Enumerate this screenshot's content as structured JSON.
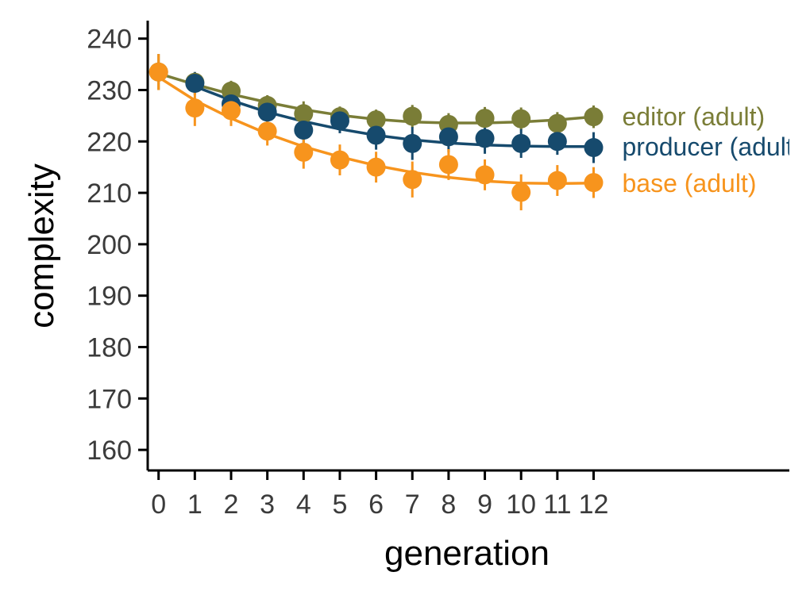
{
  "chart_data": {
    "type": "scatter",
    "title": "",
    "xlabel": "generation",
    "ylabel": "complexity",
    "x": [
      0,
      1,
      2,
      3,
      4,
      5,
      6,
      7,
      8,
      9,
      10,
      11,
      12
    ],
    "x_tick_labels": [
      "0",
      "1",
      "2",
      "3",
      "4",
      "5",
      "6",
      "7",
      "8",
      "9",
      "10",
      "11",
      "12"
    ],
    "xlim": [
      -0.3,
      17.4
    ],
    "y_ticks": [
      160,
      170,
      180,
      190,
      200,
      210,
      220,
      230,
      240
    ],
    "y_tick_labels": [
      "160",
      "170",
      "180",
      "190",
      "200",
      "210",
      "220",
      "230",
      "240"
    ],
    "ylim": [
      156,
      243.5
    ],
    "grid": false,
    "legend_placement": "right, at line ends",
    "series": [
      {
        "name": "editor (adult)",
        "color": "#7a7d37",
        "x": [
          0,
          1,
          2,
          3,
          4,
          5,
          6,
          7,
          8,
          9,
          10,
          11,
          12
        ],
        "values": [
          233.5,
          231.5,
          229.8,
          227.0,
          225.4,
          224.8,
          224.2,
          224.9,
          223.3,
          224.5,
          224.4,
          223.5,
          224.8
        ],
        "err": [
          3.5,
          2.0,
          2.0,
          2.0,
          2.4,
          2.0,
          2.0,
          2.2,
          2.2,
          2.2,
          2.2,
          2.2,
          2.2
        ],
        "fit": [
          233.2,
          231.1,
          229.2,
          227.6,
          226.2,
          225.1,
          224.3,
          223.8,
          223.6,
          223.6,
          223.8,
          224.2,
          224.8
        ]
      },
      {
        "name": "producer (adult)",
        "color": "#164a6d",
        "x": [
          1,
          2,
          3,
          4,
          5,
          6,
          7,
          8,
          9,
          10,
          11,
          12
        ],
        "values": [
          231.3,
          227.3,
          225.7,
          222.2,
          224.0,
          221.2,
          219.6,
          220.9,
          220.6,
          219.6,
          220.0,
          218.8
        ],
        "err": [
          2.2,
          2.2,
          2.2,
          3.0,
          2.4,
          2.8,
          3.2,
          3.0,
          3.0,
          2.8,
          2.6,
          3.0
        ],
        "fit": [
          230.7,
          228.0,
          225.7,
          223.9,
          222.4,
          221.2,
          220.3,
          219.7,
          219.3,
          219.1,
          219.0,
          219.0
        ]
      },
      {
        "name": "base (adult)",
        "color": "#f7941d",
        "x": [
          0,
          1,
          2,
          3,
          4,
          5,
          6,
          7,
          8,
          9,
          10,
          11,
          12
        ],
        "values": [
          233.5,
          226.5,
          226.0,
          222.0,
          217.9,
          216.4,
          215.0,
          212.6,
          215.5,
          213.5,
          210.1,
          212.4,
          212.0
        ],
        "err": [
          3.5,
          3.5,
          3.0,
          2.8,
          3.2,
          3.0,
          3.0,
          3.5,
          3.0,
          3.0,
          3.5,
          3.0,
          3.0
        ],
        "fit": [
          232.5,
          228.0,
          224.5,
          221.5,
          219.0,
          217.0,
          215.3,
          214.0,
          213.0,
          212.3,
          211.9,
          211.8,
          211.9
        ]
      }
    ]
  }
}
